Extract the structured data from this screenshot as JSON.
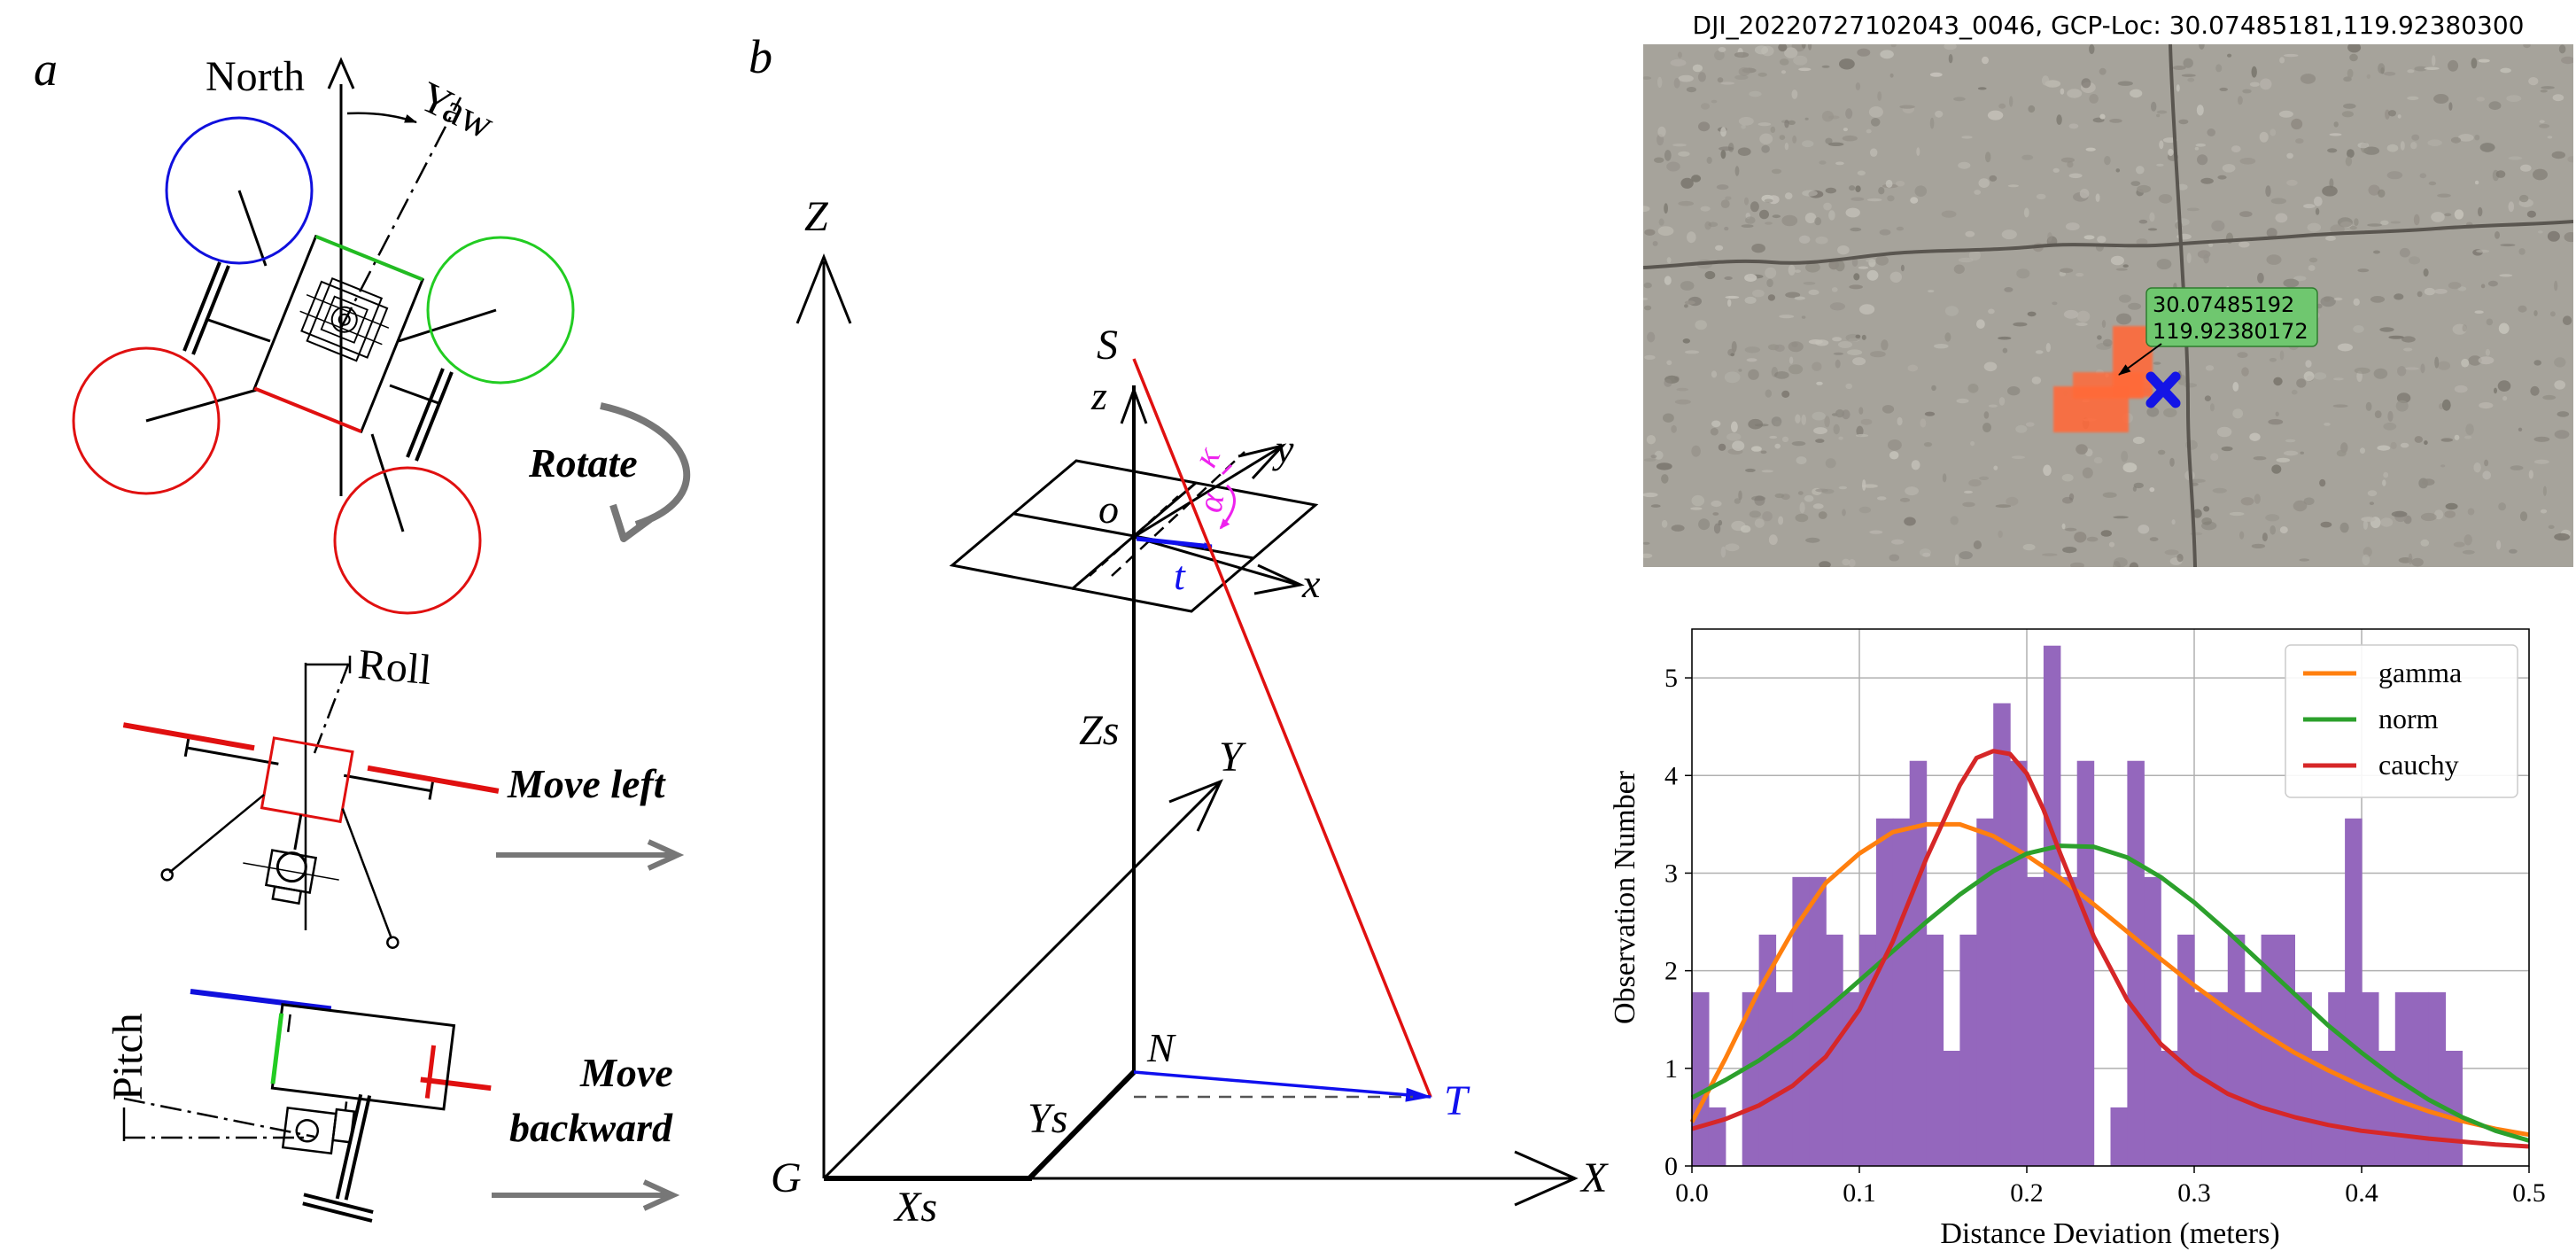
{
  "panel_a": {
    "label": "a",
    "north": "North",
    "yaw": "Yaw",
    "rotate": "Rotate",
    "roll": "Roll",
    "move_left": "Move left",
    "pitch": "Pitch",
    "move_backward_1": "Move",
    "move_backward_2": "backward"
  },
  "panel_b": {
    "label": "b",
    "Z": "Z",
    "S": "S",
    "z": "z",
    "y": "y",
    "x": "x",
    "o": "o",
    "t": "t",
    "kappa": "κ",
    "alpha": "α",
    "Zs": "Zs",
    "Y": "Y",
    "N": "N",
    "T": "T",
    "Ys": "Ys",
    "G": "G",
    "Xs": "Xs",
    "X": "X"
  },
  "photo": {
    "title": "DJI_20220727102043_0046, GCP-Loc: 30.07485181,119.92380300",
    "label_line1": "30.07485192",
    "label_line2": "119.92380172"
  },
  "chart_data": {
    "type": "bar",
    "xlabel": "Distance Deviation (meters)",
    "ylabel": "Observation Number",
    "xlim": [
      0,
      0.5
    ],
    "ylim": [
      0,
      5.5
    ],
    "grid": true,
    "legend_position": "top-right",
    "xticks": [
      "0.0",
      "0.1",
      "0.2",
      "0.3",
      "0.4",
      "0.5"
    ],
    "yticks": [
      "0",
      "1",
      "2",
      "3",
      "4",
      "5"
    ],
    "bins": {
      "start": 0.0,
      "width": 0.01,
      "values": [
        1.78,
        0.6,
        0,
        1.78,
        2.37,
        1.78,
        2.96,
        2.96,
        2.37,
        1.78,
        2.37,
        3.56,
        3.56,
        4.15,
        2.37,
        1.18,
        2.37,
        3.56,
        4.74,
        4.15,
        2.96,
        5.33,
        2.96,
        4.15,
        0,
        0.6,
        4.15,
        2.96,
        1.18,
        2.37,
        1.78,
        1.78,
        2.37,
        1.78,
        2.37,
        2.37,
        1.78,
        1.18,
        1.78,
        3.56,
        1.78,
        1.18,
        1.78,
        1.78,
        1.78,
        1.18,
        0,
        0,
        0,
        0
      ]
    },
    "series": [
      {
        "name": "gamma",
        "color": "#ff7f0e",
        "x": [
          0,
          0.02,
          0.04,
          0.06,
          0.08,
          0.1,
          0.12,
          0.14,
          0.16,
          0.18,
          0.2,
          0.22,
          0.24,
          0.26,
          0.28,
          0.3,
          0.32,
          0.34,
          0.36,
          0.38,
          0.4,
          0.42,
          0.44,
          0.46,
          0.48,
          0.5
        ],
        "y": [
          0.45,
          1.1,
          1.8,
          2.4,
          2.9,
          3.2,
          3.42,
          3.5,
          3.5,
          3.38,
          3.18,
          2.95,
          2.68,
          2.4,
          2.12,
          1.85,
          1.6,
          1.37,
          1.16,
          0.98,
          0.82,
          0.68,
          0.56,
          0.46,
          0.38,
          0.32
        ]
      },
      {
        "name": "norm",
        "color": "#2ca02c",
        "x": [
          0,
          0.02,
          0.04,
          0.06,
          0.08,
          0.1,
          0.12,
          0.14,
          0.16,
          0.18,
          0.2,
          0.22,
          0.24,
          0.26,
          0.28,
          0.3,
          0.32,
          0.34,
          0.36,
          0.38,
          0.4,
          0.42,
          0.44,
          0.46,
          0.48,
          0.5
        ],
        "y": [
          0.7,
          0.88,
          1.08,
          1.32,
          1.6,
          1.9,
          2.2,
          2.5,
          2.78,
          3.02,
          3.2,
          3.28,
          3.27,
          3.16,
          2.96,
          2.7,
          2.4,
          2.08,
          1.76,
          1.44,
          1.16,
          0.9,
          0.68,
          0.5,
          0.36,
          0.26
        ]
      },
      {
        "name": "cauchy",
        "color": "#d62728",
        "x": [
          0,
          0.02,
          0.04,
          0.06,
          0.08,
          0.1,
          0.12,
          0.14,
          0.16,
          0.17,
          0.18,
          0.19,
          0.2,
          0.21,
          0.22,
          0.24,
          0.26,
          0.28,
          0.3,
          0.32,
          0.34,
          0.36,
          0.38,
          0.4,
          0.42,
          0.44,
          0.46,
          0.48,
          0.5
        ],
        "y": [
          0.38,
          0.48,
          0.62,
          0.82,
          1.12,
          1.6,
          2.3,
          3.15,
          3.9,
          4.18,
          4.25,
          4.22,
          4.02,
          3.65,
          3.2,
          2.35,
          1.7,
          1.25,
          0.95,
          0.74,
          0.6,
          0.5,
          0.42,
          0.36,
          0.32,
          0.28,
          0.25,
          0.22,
          0.2
        ]
      }
    ]
  }
}
